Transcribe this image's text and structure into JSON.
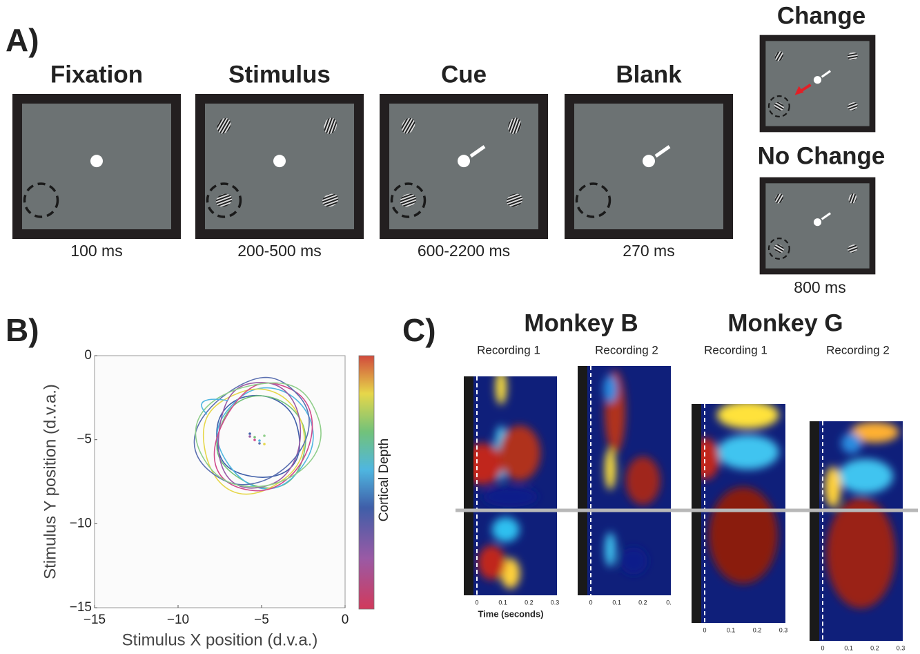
{
  "panel_a": {
    "label": "A)",
    "screens": [
      {
        "title": "Fixation",
        "duration": "100 ms"
      },
      {
        "title": "Stimulus",
        "duration": "200-500 ms"
      },
      {
        "title": "Cue",
        "duration": "600-2200 ms"
      },
      {
        "title": "Blank",
        "duration": "270 ms"
      }
    ],
    "outcomes": [
      {
        "title": "Change"
      },
      {
        "title": "No Change"
      }
    ],
    "outcome_duration": "800 ms"
  },
  "panel_b": {
    "label": "B)",
    "x_label": "Stimulus X position (d.v.a.)",
    "y_label": "Stimulus Y position (d.v.a.)",
    "colorbar_label": "Cortical Depth",
    "xlim": [
      -15,
      0
    ],
    "ylim": [
      -15,
      0
    ],
    "xticks": [
      {
        "value": -15,
        "label": "−15"
      },
      {
        "value": -10,
        "label": "−10"
      },
      {
        "value": -5,
        "label": "−5"
      },
      0
    ],
    "yticks": [
      0,
      {
        "value": -5,
        "label": "−5"
      },
      {
        "value": -10,
        "label": "−10"
      },
      {
        "value": -15,
        "label": "−15"
      }
    ]
  },
  "panel_c": {
    "label": "C)",
    "x_label": "Time (seconds)",
    "monkeys": [
      {
        "name": "Monkey B",
        "recordings": [
          {
            "title": "Recording 1",
            "ticks": [
              "0",
              "0.1",
              "0.2",
              "0.3"
            ]
          },
          {
            "title": "Recording 2",
            "ticks": [
              "0",
              "0.1",
              "0.2",
              "0."
            ]
          }
        ]
      },
      {
        "name": "Monkey G",
        "recordings": [
          {
            "title": "Recording 1",
            "ticks": [
              "0",
              "0.1",
              "0.2",
              "0.3"
            ]
          },
          {
            "title": "Recording 2",
            "ticks": [
              "0",
              "0.1",
              "0.2",
              "0.3"
            ]
          }
        ]
      }
    ]
  }
}
